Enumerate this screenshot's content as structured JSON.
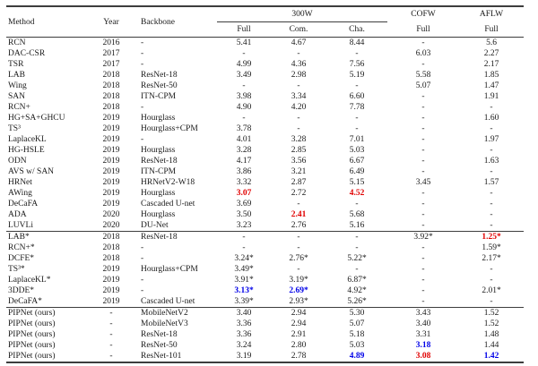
{
  "colors": {
    "best_red": "#e10000",
    "second_blue": "#0000e8",
    "text": "#1a1a1a",
    "rule": "#3d3d3d",
    "background": "#ffffff"
  },
  "header": {
    "method": "Method",
    "year": "Year",
    "backbone": "Backbone",
    "group_300w": "300W",
    "sub_full": "Full",
    "sub_com": "Com.",
    "sub_cha": "Cha.",
    "cofw": "COFW",
    "cofw_sub": "Full",
    "aflw": "AFLW",
    "aflw_sub": "Full"
  },
  "table": {
    "column_keys": [
      "method",
      "year",
      "backbone",
      "300w-full",
      "300w-com",
      "300w-cha",
      "cofw-full",
      "aflw-full"
    ],
    "sections": [
      {
        "rows": [
          {
            "cells": [
              "RCN",
              "2016",
              "-",
              "5.41",
              "4.67",
              "8.44",
              "-",
              "5.6"
            ],
            "marks": {}
          },
          {
            "cells": [
              "DAC-CSR",
              "2017",
              "-",
              "-",
              "-",
              "-",
              "6.03",
              "2.27"
            ],
            "marks": {}
          },
          {
            "cells": [
              "TSR",
              "2017",
              "-",
              "4.99",
              "4.36",
              "7.56",
              "-",
              "2.17"
            ],
            "marks": {}
          },
          {
            "cells": [
              "LAB",
              "2018",
              "ResNet-18",
              "3.49",
              "2.98",
              "5.19",
              "5.58",
              "1.85"
            ],
            "marks": {}
          },
          {
            "cells": [
              "Wing",
              "2018",
              "ResNet-50",
              "-",
              "-",
              "-",
              "5.07",
              "1.47"
            ],
            "marks": {}
          },
          {
            "cells": [
              "SAN",
              "2018",
              "ITN-CPM",
              "3.98",
              "3.34",
              "6.60",
              "-",
              "1.91"
            ],
            "marks": {}
          },
          {
            "cells": [
              "RCN+",
              "2018",
              "-",
              "4.90",
              "4.20",
              "7.78",
              "-",
              "-"
            ],
            "marks": {}
          },
          {
            "cells": [
              "HG+SA+GHCU",
              "2019",
              "Hourglass",
              "-",
              "-",
              "-",
              "-",
              "1.60"
            ],
            "marks": {}
          },
          {
            "cells": [
              "TS³",
              "2019",
              "Hourglass+CPM",
              "3.78",
              "-",
              "-",
              "-",
              "-"
            ],
            "marks": {}
          },
          {
            "cells": [
              "LaplaceKL",
              "2019",
              "-",
              "4.01",
              "3.28",
              "7.01",
              "-",
              "1.97"
            ],
            "marks": {}
          },
          {
            "cells": [
              "HG-HSLE",
              "2019",
              "Hourglass",
              "3.28",
              "2.85",
              "5.03",
              "-",
              "-"
            ],
            "marks": {}
          },
          {
            "cells": [
              "ODN",
              "2019",
              "ResNet-18",
              "4.17",
              "3.56",
              "6.67",
              "-",
              "1.63"
            ],
            "marks": {}
          },
          {
            "cells": [
              "AVS w/ SAN",
              "2019",
              "ITN-CPM",
              "3.86",
              "3.21",
              "6.49",
              "-",
              "-"
            ],
            "marks": {}
          },
          {
            "cells": [
              "HRNet",
              "2019",
              "HRNetV2-W18",
              "3.32",
              "2.87",
              "5.15",
              "3.45",
              "1.57"
            ],
            "marks": {}
          },
          {
            "cells": [
              "AWing",
              "2019",
              "Hourglass",
              "3.07",
              "2.72",
              "4.52",
              "-",
              "-"
            ],
            "marks": {
              "3": "best",
              "5": "best"
            }
          },
          {
            "cells": [
              "DeCaFA",
              "2019",
              "Cascaded U-net",
              "3.69",
              "-",
              "-",
              "-",
              "-"
            ],
            "marks": {}
          },
          {
            "cells": [
              "ADA",
              "2020",
              "Hourglass",
              "3.50",
              "2.41",
              "5.68",
              "-",
              "-"
            ],
            "marks": {
              "4": "best"
            }
          },
          {
            "cells": [
              "LUVLi",
              "2020",
              "DU-Net",
              "3.23",
              "2.76",
              "5.16",
              "-",
              "-"
            ],
            "marks": {}
          }
        ]
      },
      {
        "rows": [
          {
            "cells": [
              "LAB*",
              "2018",
              "ResNet-18",
              "-",
              "-",
              "-",
              "3.92*",
              "1.25*"
            ],
            "marks": {
              "7": "best"
            }
          },
          {
            "cells": [
              "RCN+*",
              "2018",
              "-",
              "-",
              "-",
              "-",
              "-",
              "1.59*"
            ],
            "marks": {}
          },
          {
            "cells": [
              "DCFE*",
              "2018",
              "-",
              "3.24*",
              "2.76*",
              "5.22*",
              "-",
              "2.17*"
            ],
            "marks": {}
          },
          {
            "cells": [
              "TS³*",
              "2019",
              "Hourglass+CPM",
              "3.49*",
              "-",
              "-",
              "-",
              "-"
            ],
            "marks": {}
          },
          {
            "cells": [
              "LaplaceKL*",
              "2019",
              "-",
              "3.91*",
              "3.19*",
              "6.87*",
              "-",
              "-"
            ],
            "marks": {}
          },
          {
            "cells": [
              "3DDE*",
              "2019",
              "-",
              "3.13*",
              "2.69*",
              "4.92*",
              "-",
              "2.01*"
            ],
            "marks": {
              "3": "second",
              "4": "second"
            }
          },
          {
            "cells": [
              "DeCaFA*",
              "2019",
              "Cascaded U-net",
              "3.39*",
              "2.93*",
              "5.26*",
              "-",
              "-"
            ],
            "marks": {}
          }
        ]
      },
      {
        "rows": [
          {
            "cells": [
              "PIPNet (ours)",
              "-",
              "MobileNetV2",
              "3.40",
              "2.94",
              "5.30",
              "3.43",
              "1.52"
            ],
            "marks": {}
          },
          {
            "cells": [
              "PIPNet (ours)",
              "-",
              "MobileNetV3",
              "3.36",
              "2.94",
              "5.07",
              "3.40",
              "1.52"
            ],
            "marks": {}
          },
          {
            "cells": [
              "PIPNet (ours)",
              "-",
              "ResNet-18",
              "3.36",
              "2.91",
              "5.18",
              "3.31",
              "1.48"
            ],
            "marks": {}
          },
          {
            "cells": [
              "PIPNet (ours)",
              "-",
              "ResNet-50",
              "3.24",
              "2.80",
              "5.03",
              "3.18",
              "1.44"
            ],
            "marks": {
              "6": "second"
            }
          },
          {
            "cells": [
              "PIPNet (ours)",
              "-",
              "ResNet-101",
              "3.19",
              "2.78",
              "4.89",
              "3.08",
              "1.42"
            ],
            "marks": {
              "5": "second",
              "6": "best",
              "7": "second"
            }
          }
        ]
      }
    ]
  }
}
